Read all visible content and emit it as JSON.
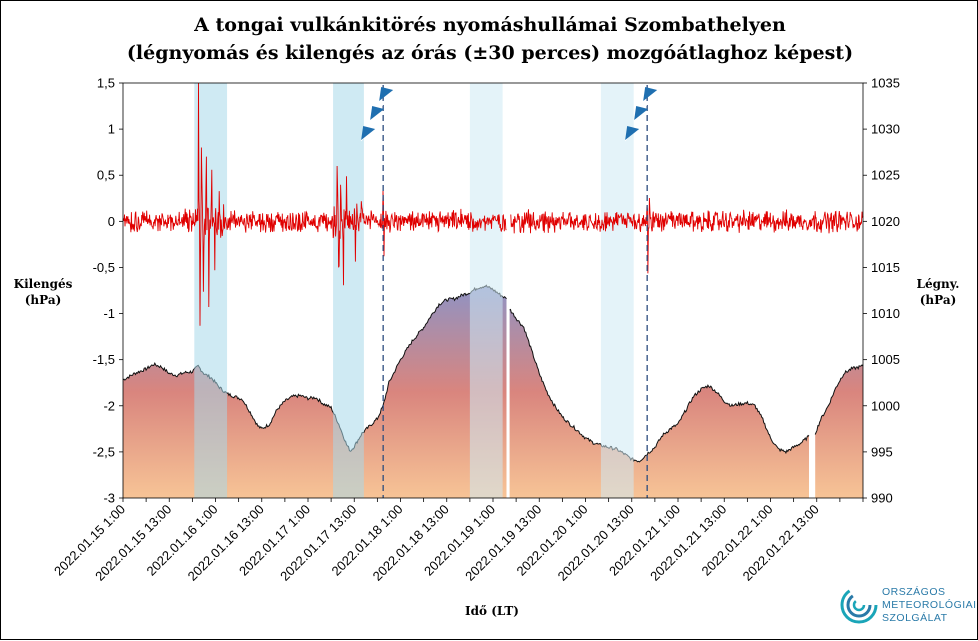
{
  "chart_data": {
    "type": "line",
    "title": "A tongai vulkánkitörés nyomáshullámai  Szombathelyen",
    "subtitle": "(légnyomás és kilengés az órás (±30 perces) mozgóátlaghoz  képest)",
    "xlabel": "Idő (LT)",
    "ylabel_left": [
      "Kilengés",
      "(hPa)"
    ],
    "ylabel_right": [
      "Légny.",
      "(hPa)"
    ],
    "ylim_left": [
      -3,
      1.5
    ],
    "ylim_right": [
      990,
      1035
    ],
    "yticks_left": [
      "1,5",
      "1",
      "0,5",
      "0",
      "-0,5",
      "-1",
      "-1,5",
      "-2",
      "-2,5",
      "-3"
    ],
    "yticks_right": [
      "1035",
      "1030",
      "1025",
      "1020",
      "1015",
      "1010",
      "1005",
      "1000",
      "995",
      "990"
    ],
    "x_hours": [
      0,
      192
    ],
    "x_ticks": [
      {
        "h": 0,
        "label": "2022.01.15 1:00"
      },
      {
        "h": 12,
        "label": "2022.01.15 13:00"
      },
      {
        "h": 24,
        "label": "2022.01.16 1:00"
      },
      {
        "h": 36,
        "label": "2022.01.16 13:00"
      },
      {
        "h": 48,
        "label": "2022.01.17 1:00"
      },
      {
        "h": 60,
        "label": "2022.01.17 13:00"
      },
      {
        "h": 72,
        "label": "2022.01.18 1:00"
      },
      {
        "h": 84,
        "label": "2022.01.18 13:00"
      },
      {
        "h": 96,
        "label": "2022.01.19 1:00"
      },
      {
        "h": 108,
        "label": "2022.01.19 13:00"
      },
      {
        "h": 120,
        "label": "2022.01.20 1:00"
      },
      {
        "h": 132,
        "label": "2022.01.20 13:00"
      },
      {
        "h": 144,
        "label": "2022.01.21 1:00"
      },
      {
        "h": 156,
        "label": "2022.01.21 13:00"
      },
      {
        "h": 168,
        "label": "2022.01.22 1:00"
      },
      {
        "h": 180,
        "label": "2022.01.22 13:00"
      }
    ],
    "highlight_bands": [
      {
        "start": 18.5,
        "end": 27.0,
        "color": "#a8d8ea"
      },
      {
        "start": 54.5,
        "end": 62.5,
        "color": "#a8d8ea"
      },
      {
        "start": 90.0,
        "end": 98.5,
        "color": "#cde9f4"
      },
      {
        "start": 124.0,
        "end": 132.5,
        "color": "#cde9f4"
      }
    ],
    "fronts": [
      {
        "h": 67.5,
        "color": "#1f6fb0"
      },
      {
        "h": 136.0,
        "color": "#1f6fb0"
      }
    ],
    "series": [
      {
        "axis": "left",
        "color": "#e00000",
        "noise_level": 0.08,
        "gaps": [
          [
            99.5,
            100.5
          ]
        ],
        "spikes": [
          {
            "h": 19.6,
            "v": 1.32
          },
          {
            "h": 20.0,
            "v": -0.95
          },
          {
            "h": 20.4,
            "v": 0.72
          },
          {
            "h": 20.9,
            "v": -0.68
          },
          {
            "h": 21.6,
            "v": 0.55
          },
          {
            "h": 22.3,
            "v": -0.75
          },
          {
            "h": 23.0,
            "v": 0.48
          },
          {
            "h": 23.8,
            "v": -0.35
          },
          {
            "h": 25.0,
            "v": 0.32
          },
          {
            "h": 55.6,
            "v": 0.6
          },
          {
            "h": 56.0,
            "v": -0.62
          },
          {
            "h": 56.5,
            "v": 0.45
          },
          {
            "h": 57.2,
            "v": -0.5
          },
          {
            "h": 58.0,
            "v": 0.35
          },
          {
            "h": 60.3,
            "v": -0.3
          },
          {
            "h": 67.5,
            "v": 0.55
          },
          {
            "h": 67.7,
            "v": -0.42
          },
          {
            "h": 136.0,
            "v": 0.35
          },
          {
            "h": 136.2,
            "v": -0.6
          },
          {
            "h": 136.6,
            "v": 0.3
          }
        ]
      },
      {
        "axis": "right",
        "line_color": "#111111",
        "fill_top": "#8f93c4",
        "fill_mid": "#d9857e",
        "fill_bottom": "#f7c496",
        "gaps": [
          [
            99.5,
            100.3
          ],
          [
            178.0,
            179.6
          ]
        ],
        "points": [
          [
            0,
            1002.8
          ],
          [
            3,
            1003.5
          ],
          [
            6,
            1004.0
          ],
          [
            8,
            1004.5
          ],
          [
            10,
            1004.2
          ],
          [
            12,
            1003.5
          ],
          [
            14,
            1003.3
          ],
          [
            16,
            1003.6
          ],
          [
            18,
            1003.7
          ],
          [
            19.5,
            1004.3
          ],
          [
            21,
            1003.5
          ],
          [
            23,
            1003.0
          ],
          [
            25,
            1002.0
          ],
          [
            27,
            1001.3
          ],
          [
            29,
            1001.0
          ],
          [
            31,
            1000.7
          ],
          [
            33,
            999.3
          ],
          [
            35,
            997.8
          ],
          [
            36,
            997.5
          ],
          [
            38,
            998.0
          ],
          [
            40,
            999.6
          ],
          [
            42,
            1000.5
          ],
          [
            44,
            1001.0
          ],
          [
            46,
            1001.1
          ],
          [
            48,
            1000.8
          ],
          [
            50,
            1000.9
          ],
          [
            52,
            1000.2
          ],
          [
            54,
            999.8
          ],
          [
            56,
            998.0
          ],
          [
            58,
            995.8
          ],
          [
            59,
            995.1
          ],
          [
            60,
            995.6
          ],
          [
            62,
            997.0
          ],
          [
            64,
            997.8
          ],
          [
            66,
            998.6
          ],
          [
            67.5,
            1000.0
          ],
          [
            69,
            1002.5
          ],
          [
            72,
            1005.0
          ],
          [
            75,
            1007.0
          ],
          [
            78,
            1008.5
          ],
          [
            80,
            1009.8
          ],
          [
            82,
            1011.0
          ],
          [
            84,
            1011.5
          ],
          [
            86,
            1011.6
          ],
          [
            88,
            1012.0
          ],
          [
            90,
            1012.3
          ],
          [
            92,
            1012.8
          ],
          [
            94,
            1013.0
          ],
          [
            96,
            1012.6
          ],
          [
            98,
            1012.0
          ],
          [
            99.5,
            1011.6
          ],
          [
            100.3,
            1010.5
          ],
          [
            102,
            1009.5
          ],
          [
            104,
            1008.5
          ],
          [
            106,
            1006.0
          ],
          [
            108,
            1003.5
          ],
          [
            110,
            1001.5
          ],
          [
            112,
            1000.0
          ],
          [
            114,
            998.8
          ],
          [
            116,
            998.0
          ],
          [
            118,
            997.3
          ],
          [
            120,
            996.5
          ],
          [
            122,
            996.0
          ],
          [
            124,
            995.7
          ],
          [
            126,
            995.5
          ],
          [
            128,
            995.3
          ],
          [
            130,
            994.8
          ],
          [
            132,
            994.2
          ],
          [
            134,
            994.0
          ],
          [
            136,
            994.8
          ],
          [
            138,
            995.5
          ],
          [
            140,
            996.8
          ],
          [
            142,
            997.5
          ],
          [
            144,
            998.0
          ],
          [
            146,
            999.5
          ],
          [
            148,
            1001.0
          ],
          [
            150,
            1001.8
          ],
          [
            152,
            1002.2
          ],
          [
            154,
            1001.5
          ],
          [
            156,
            1000.5
          ],
          [
            158,
            1000.0
          ],
          [
            160,
            1000.2
          ],
          [
            162,
            1000.3
          ],
          [
            164,
            1000.0
          ],
          [
            166,
            998.5
          ],
          [
            168,
            996.5
          ],
          [
            170,
            995.3
          ],
          [
            172,
            995.0
          ],
          [
            174,
            995.5
          ],
          [
            176,
            996.0
          ],
          [
            178,
            996.7
          ],
          [
            179.6,
            997.0
          ],
          [
            181,
            998.5
          ],
          [
            183,
            1000.0
          ],
          [
            185,
            1002.0
          ],
          [
            187,
            1003.5
          ],
          [
            189,
            1004.0
          ],
          [
            192,
            1004.3
          ]
        ]
      }
    ],
    "grid": false
  },
  "logo": {
    "lines": [
      "ORSZÁGOS",
      "METEOROLÓGIAI",
      "SZOLGÁLAT"
    ],
    "color": "#2a7aa8"
  }
}
